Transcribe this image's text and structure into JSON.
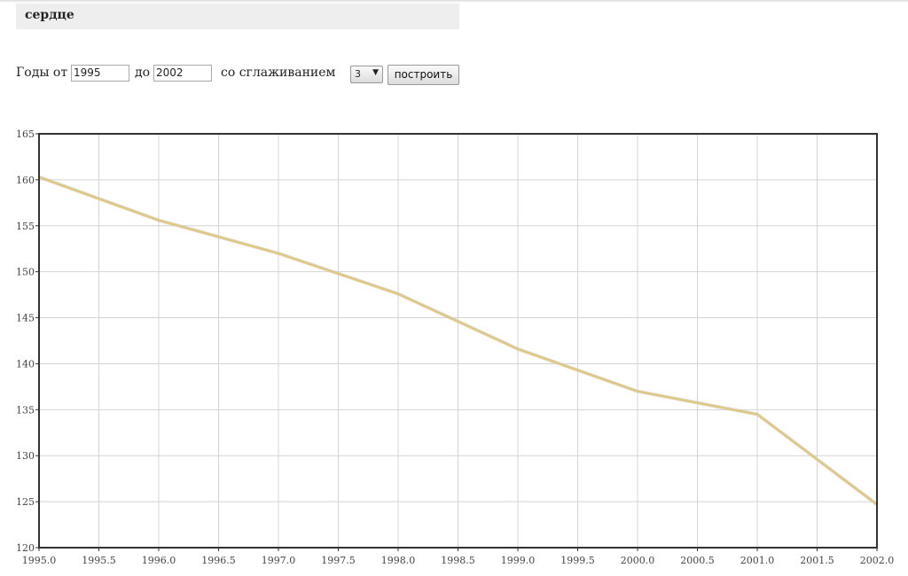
{
  "header": {
    "title": "сердце"
  },
  "controls": {
    "years_from_label": "Годы от",
    "year_from": "1995",
    "to_label": "до",
    "year_to": "2002",
    "smoothing_label": "со сглаживанием",
    "smoothing_value": "3",
    "build_button": "построить"
  },
  "chart_data": {
    "type": "line",
    "title": "",
    "xlabel": "",
    "ylabel": "",
    "xlim": [
      1995.0,
      2002.0
    ],
    "ylim": [
      120,
      165
    ],
    "grid": true,
    "x_ticks": [
      "1995.0",
      "1995.5",
      "1996.0",
      "1996.5",
      "1997.0",
      "1997.5",
      "1998.0",
      "1998.5",
      "1999.0",
      "1999.5",
      "2000.0",
      "2000.5",
      "2001.0",
      "2001.5",
      "2002.0"
    ],
    "y_ticks": [
      "120",
      "125",
      "130",
      "135",
      "140",
      "145",
      "150",
      "155",
      "160",
      "165"
    ],
    "line_color": "#e0c880",
    "series": [
      {
        "x": [
          1995,
          1996,
          1997,
          1998,
          1999,
          2000,
          2001,
          2002
        ],
        "values": [
          160.3,
          155.6,
          152.0,
          147.6,
          141.6,
          137.0,
          134.5,
          124.7
        ]
      }
    ]
  }
}
